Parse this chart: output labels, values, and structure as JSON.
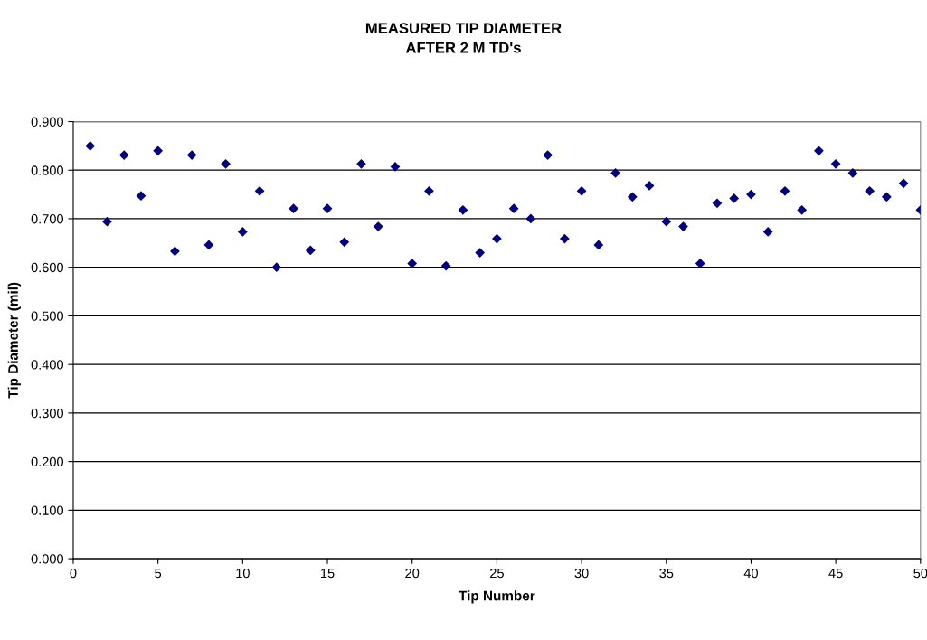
{
  "chart_data": {
    "type": "scatter",
    "title": "MEASURED TIP DIAMETER\nAFTER 2 M TD's",
    "xlabel": "Tip Number",
    "ylabel": "Tip Diameter (mil)",
    "x": [
      1,
      2,
      3,
      4,
      5,
      6,
      7,
      8,
      9,
      10,
      11,
      12,
      13,
      14,
      15,
      16,
      17,
      18,
      19,
      20,
      21,
      22,
      23,
      24,
      25,
      26,
      27,
      28,
      29,
      30,
      31,
      32,
      33,
      34,
      35,
      36,
      37,
      38,
      39,
      40,
      41,
      42,
      43,
      44,
      45,
      46,
      47,
      48,
      49,
      50
    ],
    "series": [
      {
        "color": "#000080",
        "values": [
          0.85,
          0.694,
          0.831,
          0.747,
          0.84,
          0.633,
          0.831,
          0.646,
          0.813,
          0.673,
          0.757,
          0.6,
          0.721,
          0.635,
          0.721,
          0.652,
          0.813,
          0.684,
          0.807,
          0.608,
          0.757,
          0.603,
          0.718,
          0.63,
          0.659,
          0.721,
          0.7,
          0.831,
          0.659,
          0.757,
          0.646,
          0.794,
          0.745,
          0.768,
          0.694,
          0.684,
          0.608,
          0.732,
          0.742,
          0.75,
          0.673,
          0.757,
          0.718,
          0.84,
          0.813,
          0.794,
          0.757,
          0.745,
          0.773,
          0.718
        ]
      }
    ],
    "xlim": [
      0,
      50
    ],
    "xticks": [
      0,
      5,
      10,
      15,
      20,
      25,
      30,
      35,
      40,
      45,
      50
    ],
    "ylim": [
      0,
      0.9
    ],
    "yticks": [
      {
        "value": 0,
        "label": "0.000"
      },
      {
        "value": 0.1,
        "label": "0.100"
      },
      {
        "value": 0.2,
        "label": "0.200"
      },
      {
        "value": 0.3,
        "label": "0.300"
      },
      {
        "value": 0.4,
        "label": "0.400"
      },
      {
        "value": 0.5,
        "label": "0.500"
      },
      {
        "value": 0.6,
        "label": "0.600"
      },
      {
        "value": 0.7,
        "label": "0.700"
      },
      {
        "value": 0.8,
        "label": "0.800"
      },
      {
        "value": 0.9,
        "label": "0.900"
      }
    ],
    "grid": "y",
    "marker": "diamond",
    "legend": false
  }
}
